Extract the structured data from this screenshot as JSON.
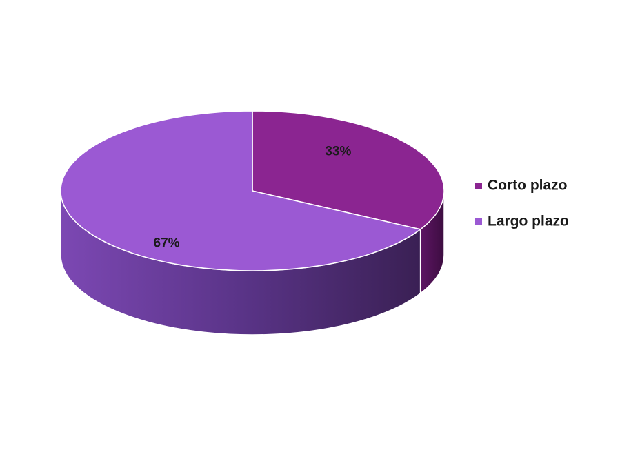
{
  "chart_data": {
    "type": "pie",
    "categories": [
      "Corto plazo",
      "Largo plazo"
    ],
    "values": [
      33,
      67
    ],
    "value_labels": [
      "33%",
      "67%"
    ],
    "colors": [
      "#8b2591",
      "#9b59d3"
    ],
    "legend": "right"
  }
}
